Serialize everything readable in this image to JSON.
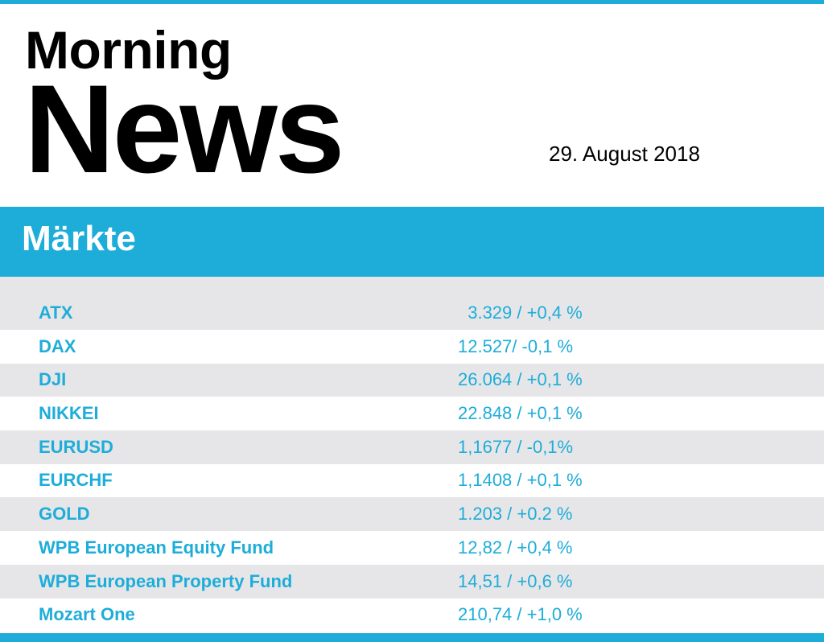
{
  "header": {
    "title_line1": "Morning",
    "title_line2": "News",
    "date": "29. August 2018"
  },
  "section": {
    "title": "Märkte"
  },
  "markets": [
    {
      "name": "ATX",
      "quote": "  3.329 / +0,4 %"
    },
    {
      "name": "DAX",
      "quote": "12.527/ -0,1 %"
    },
    {
      "name": "DJI",
      "quote": "26.064 / +0,1 %"
    },
    {
      "name": "NIKKEI",
      "quote": "22.848 / +0,1 %"
    },
    {
      "name": "EURUSD",
      "quote": "1,1677 / -0,1%"
    },
    {
      "name": "EURCHF",
      "quote": "1,1408 / +0,1 %"
    },
    {
      "name": "GOLD",
      "quote": "1.203 / +0.2 %"
    },
    {
      "name": "WPB European Equity Fund",
      "quote": "12,82 / +0,4 %"
    },
    {
      "name": "WPB European Property Fund",
      "quote": "14,51 / +0,6 %"
    },
    {
      "name": "Mozart One",
      "quote": "210,74 / +1,0 %"
    }
  ],
  "colors": {
    "accent": "#1eadd9",
    "row_shade": "#e6e6e8",
    "text_dark": "#000000"
  }
}
